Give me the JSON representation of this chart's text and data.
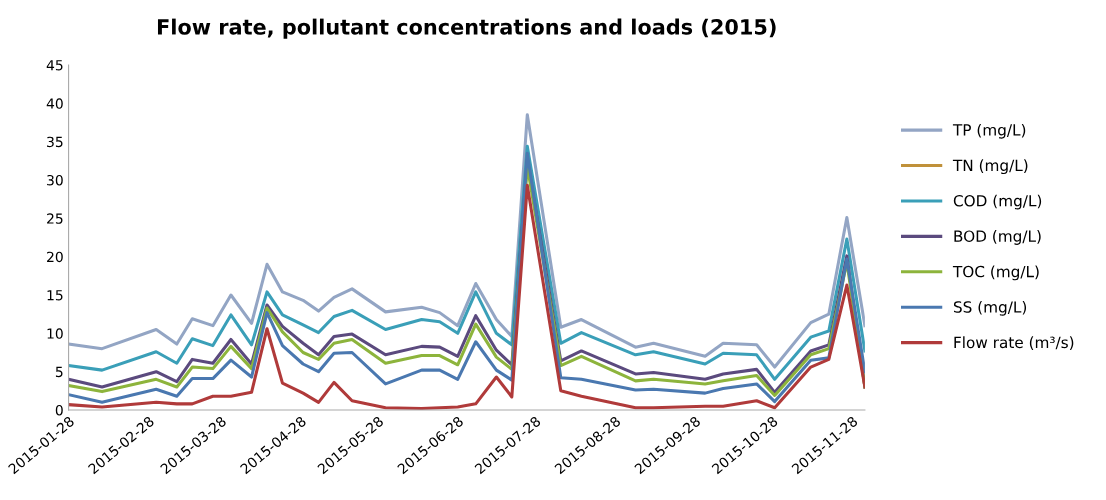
{
  "chart_data": {
    "type": "line",
    "title": "Flow rate, pollutant concentrations and loads (2015)",
    "x": [
      "2015-01-28",
      "2015-02-10",
      "2015-03-03",
      "2015-03-11",
      "2015-03-17",
      "2015-03-25",
      "2015-04-01",
      "2015-04-09",
      "2015-04-15",
      "2015-04-21",
      "2015-04-29",
      "2015-05-05",
      "2015-05-11",
      "2015-05-18",
      "2015-05-31",
      "2015-06-14",
      "2015-06-21",
      "2015-06-28",
      "2015-07-05",
      "2015-07-13",
      "2015-07-19",
      "2015-07-25",
      "2015-08-07",
      "2015-08-15",
      "2015-09-05",
      "2015-09-12",
      "2015-10-02",
      "2015-10-09",
      "2015-10-22",
      "2015-10-29",
      "2015-11-12",
      "2015-11-19",
      "2015-11-26",
      "2015-12-03"
    ],
    "series": [
      {
        "name": "TP (mg/L)",
        "color": "#93a5c4",
        "values": [
          8.6,
          8.0,
          10.5,
          8.6,
          11.9,
          11.0,
          15.0,
          11.3,
          19.0,
          15.4,
          14.3,
          12.9,
          14.7,
          15.8,
          12.8,
          13.4,
          12.7,
          11.0,
          16.5,
          11.8,
          9.6,
          38.5,
          10.8,
          11.8,
          8.2,
          8.7,
          7.0,
          8.7,
          8.5,
          5.6,
          11.4,
          12.5,
          25.1,
          11.0
        ]
      },
      {
        "name": "TN (mg/L)",
        "color": "#c0913a",
        "values": [
          null,
          null,
          null,
          null,
          null,
          null,
          null,
          null,
          null,
          null,
          null,
          null,
          null,
          null,
          null,
          null,
          null,
          null,
          null,
          null,
          null,
          null,
          null,
          null,
          null,
          null,
          null,
          null,
          null,
          null,
          null,
          null,
          null,
          null
        ]
      },
      {
        "name": "COD (mg/L)",
        "color": "#3a9fb8",
        "values": [
          5.8,
          5.2,
          7.6,
          6.1,
          9.3,
          8.4,
          12.4,
          8.5,
          15.4,
          12.4,
          11.1,
          10.1,
          12.2,
          13.0,
          10.5,
          11.8,
          11.5,
          10.0,
          15.4,
          10.0,
          8.5,
          34.4,
          8.7,
          10.1,
          7.2,
          7.6,
          6.0,
          7.4,
          7.2,
          4.0,
          9.5,
          10.3,
          22.3,
          7.7
        ]
      },
      {
        "name": "BOD (mg/L)",
        "color": "#5b4a7e",
        "values": [
          4.0,
          3.0,
          5.0,
          3.7,
          6.6,
          6.1,
          9.2,
          6.0,
          13.7,
          10.9,
          8.7,
          7.2,
          9.6,
          9.9,
          7.2,
          8.3,
          8.2,
          7.0,
          12.3,
          7.8,
          5.9,
          32.7,
          6.4,
          7.7,
          4.7,
          4.9,
          4.0,
          4.7,
          5.3,
          2.3,
          7.7,
          8.5,
          20.1,
          3.0
        ]
      },
      {
        "name": "TOC (mg/L)",
        "color": "#8db43c",
        "values": [
          3.2,
          2.4,
          4.0,
          3.0,
          5.6,
          5.4,
          8.3,
          5.4,
          13.3,
          10.2,
          7.5,
          6.6,
          8.7,
          9.2,
          6.1,
          7.1,
          7.1,
          5.9,
          11.2,
          6.9,
          5.3,
          31.8,
          5.8,
          7.0,
          3.8,
          4.0,
          3.4,
          3.8,
          4.5,
          1.9,
          7.2,
          8.0,
          19.3,
          3.0
        ]
      },
      {
        "name": "SS (mg/L)",
        "color": "#4a78b0",
        "values": [
          2.0,
          1.0,
          2.7,
          1.8,
          4.1,
          4.1,
          6.5,
          4.3,
          12.7,
          8.4,
          6.0,
          5.0,
          7.4,
          7.5,
          3.4,
          5.2,
          5.2,
          4.0,
          8.9,
          5.2,
          3.9,
          33.5,
          4.2,
          4.0,
          2.6,
          2.7,
          2.2,
          2.8,
          3.4,
          1.1,
          6.5,
          6.8,
          19.7,
          5.0
        ]
      },
      {
        "name": "Flow rate (m³/s)",
        "color": "#b03a3a",
        "values": [
          0.7,
          0.4,
          1.0,
          0.8,
          0.8,
          1.8,
          1.8,
          2.3,
          10.6,
          3.5,
          2.2,
          1.0,
          3.6,
          1.2,
          0.3,
          0.2,
          0.3,
          0.4,
          0.8,
          4.3,
          1.7,
          29.3,
          2.5,
          1.8,
          0.3,
          0.3,
          0.5,
          0.5,
          1.2,
          0.3,
          5.6,
          6.6,
          16.3,
          3.0
        ]
      }
    ],
    "xlim": [
      "2015-01-28",
      "2015-12-03"
    ],
    "xticks": [
      "2015-01-28",
      "2015-02-28",
      "2015-03-28",
      "2015-04-28",
      "2015-05-28",
      "2015-06-28",
      "2015-07-28",
      "2015-08-28",
      "2015-09-28",
      "2015-10-28",
      "2015-11-28"
    ],
    "ylim": [
      0,
      45
    ],
    "yticks": [
      0,
      5,
      10,
      15,
      20,
      25,
      30,
      35,
      40,
      45
    ],
    "grid": false,
    "legend": "right",
    "marker": "none",
    "line_style": "solid"
  }
}
